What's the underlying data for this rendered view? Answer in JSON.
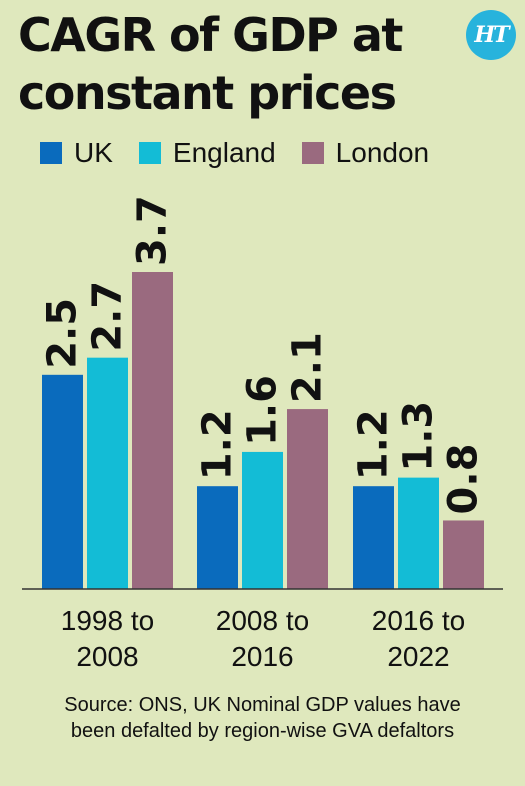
{
  "title_lines": [
    "CAGR of GDP at",
    "constant prices"
  ],
  "logo_text": "HT",
  "source_lines": [
    "Source: ONS, UK Nominal GDP values have",
    "been defalted by region-wise GVA defaltors"
  ],
  "chart_data": {
    "type": "bar",
    "title": "CAGR of GDP at constant prices",
    "categories": [
      "1998 to 2008",
      "2008 to 2016",
      "2016 to 2022"
    ],
    "category_label_lines": [
      [
        "1998 to",
        "2008"
      ],
      [
        "2008 to",
        "2016"
      ],
      [
        "2016 to",
        "2022"
      ]
    ],
    "series": [
      {
        "name": "UK",
        "color": "#0a6bbd",
        "values": [
          2.5,
          1.2,
          1.2
        ]
      },
      {
        "name": "England",
        "color": "#13bcd6",
        "values": [
          2.7,
          1.6,
          1.3
        ]
      },
      {
        "name": "London",
        "color": "#9a6a7f",
        "values": [
          3.7,
          2.1,
          0.8
        ]
      }
    ],
    "ylim": [
      0,
      3.7
    ],
    "grid": false,
    "legend_position": "top-left",
    "data_labels": true
  }
}
